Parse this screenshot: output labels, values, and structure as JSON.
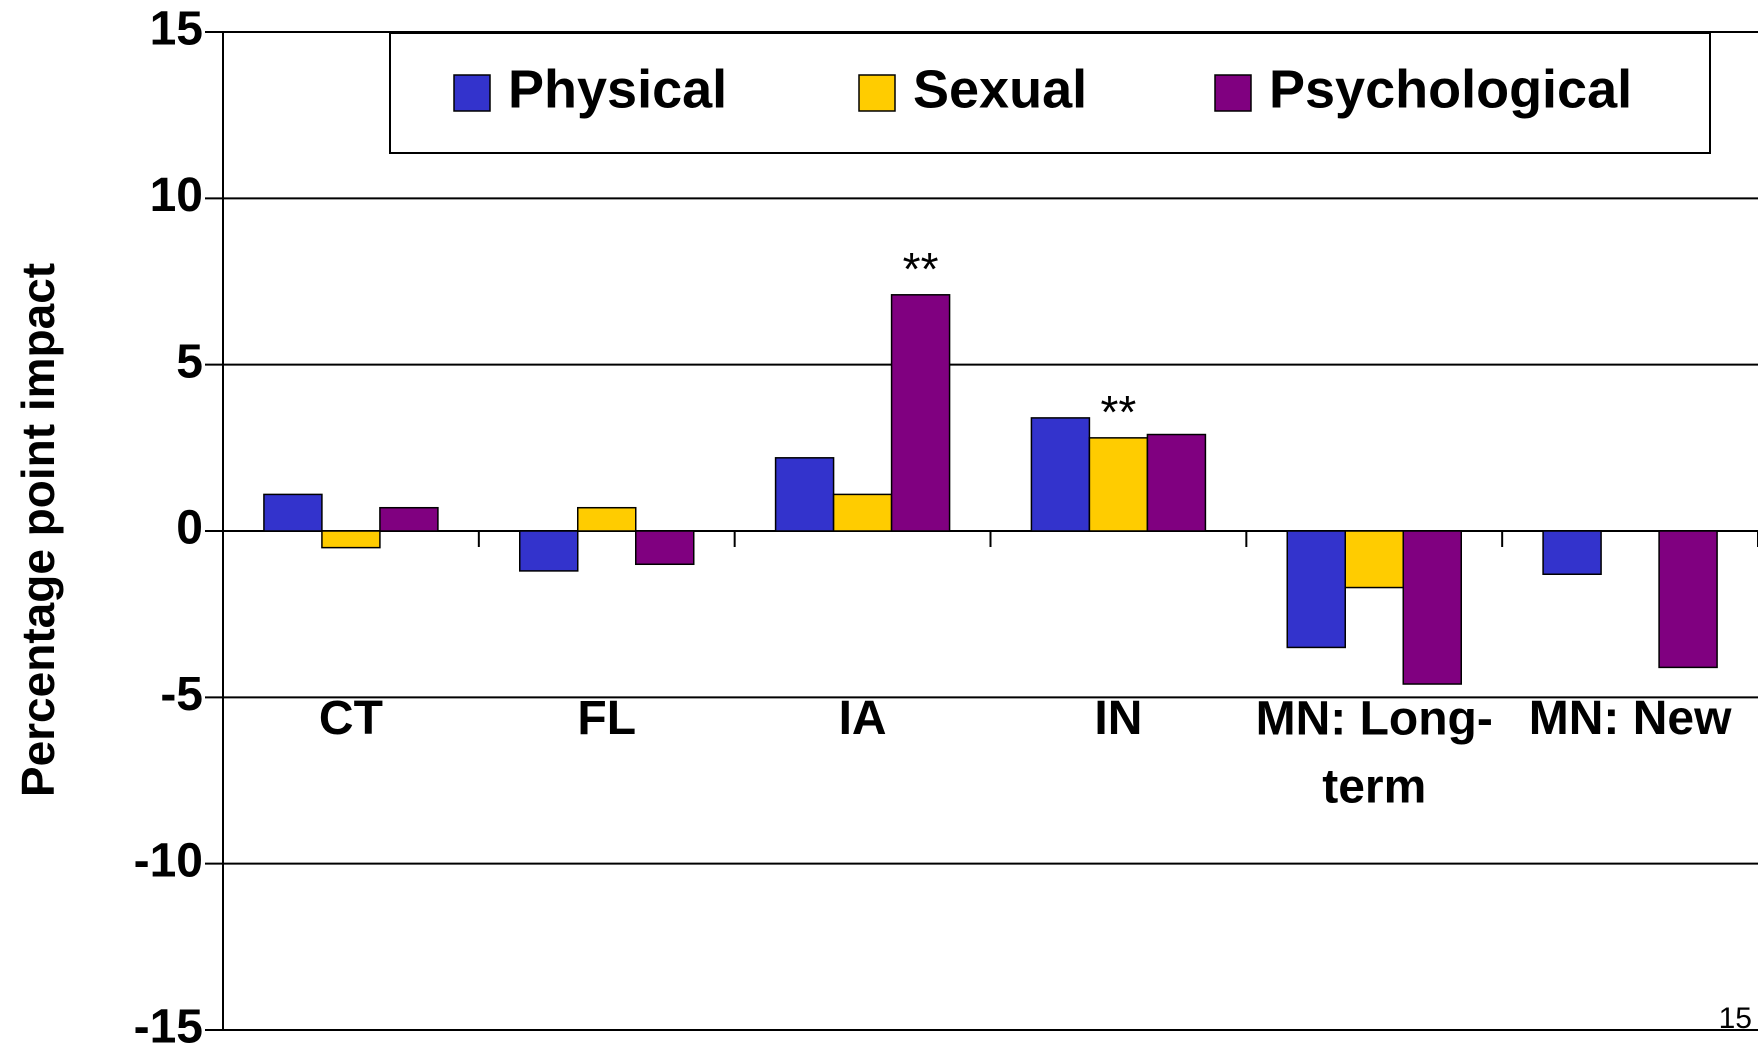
{
  "chart_data": {
    "type": "bar",
    "y_axis_label": "Percentage point impact",
    "categories": [
      "CT",
      "FL",
      "IA",
      "IN",
      "MN: Long-term",
      "MN: New"
    ],
    "series": [
      {
        "name": "Physical",
        "color": "#3333cc",
        "values": [
          1.1,
          -1.2,
          2.2,
          3.4,
          -3.5,
          -1.3
        ]
      },
      {
        "name": "Sexual",
        "color": "#ffcc00",
        "values": [
          -0.5,
          0.7,
          1.1,
          2.8,
          -1.7,
          null
        ]
      },
      {
        "name": "Psychological",
        "color": "#800080",
        "values": [
          0.7,
          -1.0,
          7.1,
          2.9,
          -4.6,
          -4.1
        ]
      }
    ],
    "annotations": [
      {
        "text": "**",
        "category": "IA",
        "series": "Psychological"
      },
      {
        "text": "**",
        "category": "IN",
        "series": "Sexual"
      }
    ],
    "ylim": [
      -15,
      15
    ],
    "yticks": [
      -15,
      -10,
      -5,
      0,
      5,
      10,
      15
    ],
    "grid": true,
    "legend": "top",
    "page_number": "15"
  }
}
